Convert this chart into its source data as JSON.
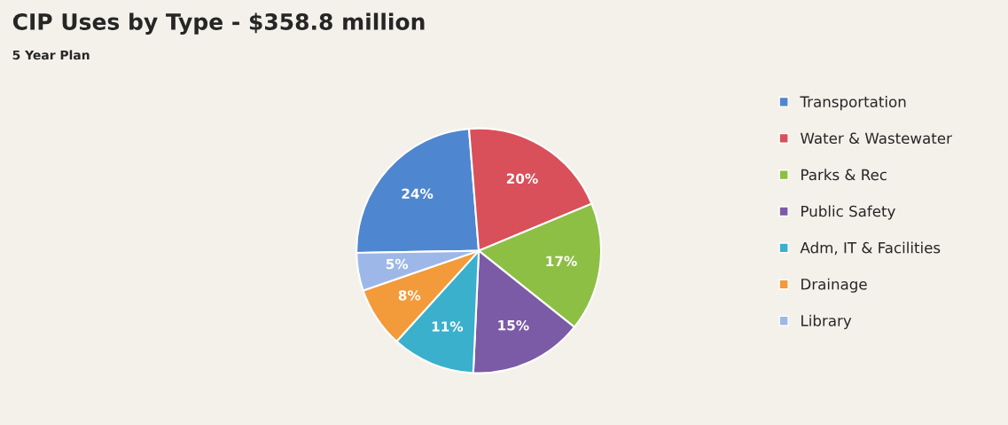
{
  "chart_data": {
    "type": "pie",
    "title": "CIP Uses by Type - $358.8 million",
    "subtitle": "5 Year Plan",
    "categories": [
      "Transportation",
      "Water & Wastewater",
      "Parks & Rec",
      "Public Safety",
      "Adm, IT & Facilities",
      "Drainage",
      "Library"
    ],
    "values": [
      24,
      20,
      17,
      15,
      11,
      8,
      5
    ],
    "value_labels": [
      "24%",
      "20%",
      "17%",
      "15%",
      "11%",
      "8%",
      "5%"
    ],
    "colors": [
      "#4f86d0",
      "#d9505a",
      "#8dbf45",
      "#7b5aa6",
      "#3ab0cc",
      "#f39a3a",
      "#9db8e8"
    ],
    "legend": "right"
  }
}
